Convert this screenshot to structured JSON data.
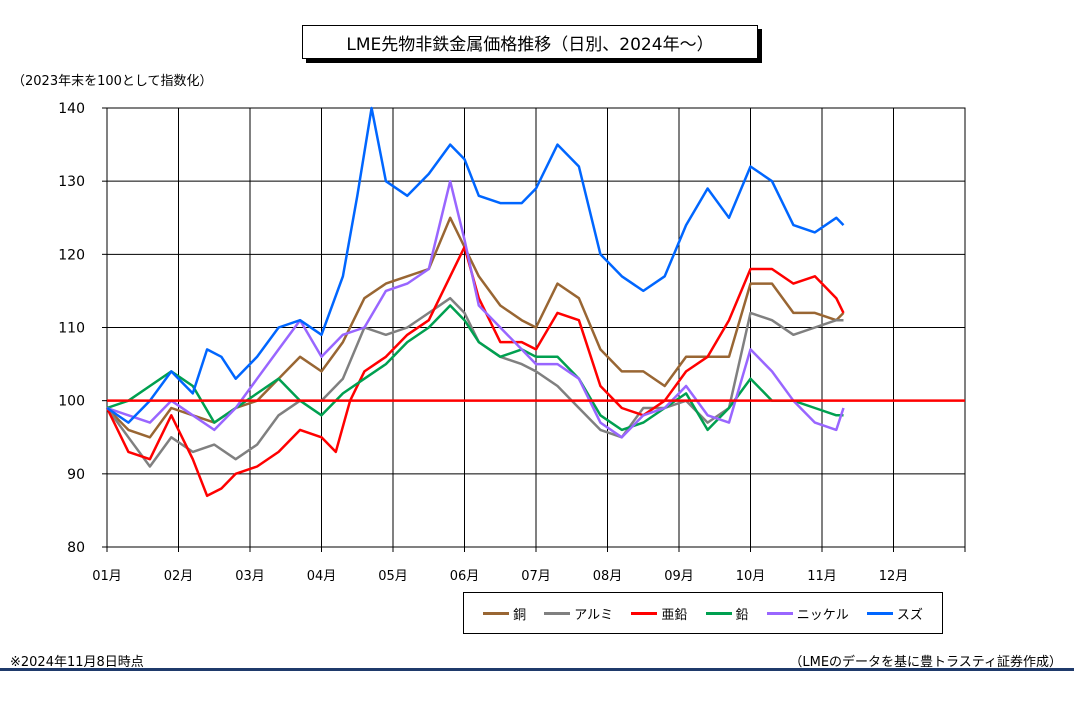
{
  "title": "LME先物非鉄金属価格推移（日別、2024年～）",
  "unit_label": "（2023年末を100として指数化）",
  "note": "※2024年11月8日時点",
  "source": "（LMEのデータを基に豊トラスティ証券作成）",
  "chart_data": {
    "type": "line",
    "ylim": [
      80,
      140
    ],
    "yticks": [
      80,
      90,
      100,
      110,
      120,
      130,
      140
    ],
    "xlim": [
      0,
      12
    ],
    "xticks": [
      "01月",
      "02月",
      "03月",
      "04月",
      "05月",
      "06月",
      "07月",
      "08月",
      "09月",
      "10月",
      "11月",
      "12月"
    ],
    "grid": true,
    "legend_position": "bottom-right",
    "reference_line": {
      "value": 100,
      "color": "#ff0000"
    },
    "series": [
      {
        "name": "銅",
        "color": "#996633",
        "points": [
          [
            0,
            99
          ],
          [
            0.3,
            96
          ],
          [
            0.6,
            95
          ],
          [
            0.9,
            99
          ],
          [
            1.2,
            98
          ],
          [
            1.5,
            97
          ],
          [
            1.8,
            99
          ],
          [
            2.1,
            100
          ],
          [
            2.4,
            103
          ],
          [
            2.7,
            106
          ],
          [
            3.0,
            104
          ],
          [
            3.3,
            108
          ],
          [
            3.6,
            114
          ],
          [
            3.9,
            116
          ],
          [
            4.2,
            117
          ],
          [
            4.5,
            118
          ],
          [
            4.8,
            125
          ],
          [
            5.0,
            121
          ],
          [
            5.2,
            117
          ],
          [
            5.5,
            113
          ],
          [
            5.8,
            111
          ],
          [
            6.0,
            110
          ],
          [
            6.3,
            116
          ],
          [
            6.6,
            114
          ],
          [
            6.9,
            107
          ],
          [
            7.2,
            104
          ],
          [
            7.5,
            104
          ],
          [
            7.8,
            102
          ],
          [
            8.1,
            106
          ],
          [
            8.4,
            106
          ],
          [
            8.7,
            106
          ],
          [
            9.0,
            116
          ],
          [
            9.3,
            116
          ],
          [
            9.6,
            112
          ],
          [
            9.9,
            112
          ],
          [
            10.2,
            111
          ],
          [
            10.3,
            112
          ]
        ]
      },
      {
        "name": "アルミ",
        "color": "#808080",
        "points": [
          [
            0,
            99
          ],
          [
            0.3,
            95
          ],
          [
            0.6,
            91
          ],
          [
            0.9,
            95
          ],
          [
            1.2,
            93
          ],
          [
            1.5,
            94
          ],
          [
            1.8,
            92
          ],
          [
            2.1,
            94
          ],
          [
            2.4,
            98
          ],
          [
            2.7,
            100
          ],
          [
            3.0,
            100
          ],
          [
            3.3,
            103
          ],
          [
            3.6,
            110
          ],
          [
            3.9,
            109
          ],
          [
            4.2,
            110
          ],
          [
            4.5,
            112
          ],
          [
            4.8,
            114
          ],
          [
            5.0,
            112
          ],
          [
            5.2,
            108
          ],
          [
            5.5,
            106
          ],
          [
            5.8,
            105
          ],
          [
            6.0,
            104
          ],
          [
            6.3,
            102
          ],
          [
            6.6,
            99
          ],
          [
            6.9,
            96
          ],
          [
            7.2,
            95
          ],
          [
            7.5,
            99
          ],
          [
            7.8,
            99
          ],
          [
            8.1,
            100
          ],
          [
            8.4,
            97
          ],
          [
            8.7,
            99
          ],
          [
            9.0,
            112
          ],
          [
            9.3,
            111
          ],
          [
            9.6,
            109
          ],
          [
            9.9,
            110
          ],
          [
            10.2,
            111
          ],
          [
            10.3,
            111
          ]
        ]
      },
      {
        "name": "亜鉛",
        "color": "#ff0000",
        "points": [
          [
            0,
            99
          ],
          [
            0.3,
            93
          ],
          [
            0.6,
            92
          ],
          [
            0.9,
            98
          ],
          [
            1.2,
            92
          ],
          [
            1.4,
            87
          ],
          [
            1.6,
            88
          ],
          [
            1.8,
            90
          ],
          [
            2.1,
            91
          ],
          [
            2.4,
            93
          ],
          [
            2.7,
            96
          ],
          [
            3.0,
            95
          ],
          [
            3.2,
            93
          ],
          [
            3.4,
            100
          ],
          [
            3.6,
            104
          ],
          [
            3.9,
            106
          ],
          [
            4.2,
            109
          ],
          [
            4.5,
            111
          ],
          [
            4.8,
            117
          ],
          [
            5.0,
            121
          ],
          [
            5.2,
            114
          ],
          [
            5.5,
            108
          ],
          [
            5.8,
            108
          ],
          [
            6.0,
            107
          ],
          [
            6.3,
            112
          ],
          [
            6.6,
            111
          ],
          [
            6.9,
            102
          ],
          [
            7.2,
            99
          ],
          [
            7.5,
            98
          ],
          [
            7.8,
            100
          ],
          [
            8.1,
            104
          ],
          [
            8.4,
            106
          ],
          [
            8.7,
            111
          ],
          [
            9.0,
            118
          ],
          [
            9.3,
            118
          ],
          [
            9.6,
            116
          ],
          [
            9.9,
            117
          ],
          [
            10.2,
            114
          ],
          [
            10.3,
            112
          ]
        ]
      },
      {
        "name": "鉛",
        "color": "#00a050",
        "points": [
          [
            0,
            99
          ],
          [
            0.3,
            100
          ],
          [
            0.6,
            102
          ],
          [
            0.9,
            104
          ],
          [
            1.2,
            102
          ],
          [
            1.5,
            97
          ],
          [
            1.8,
            99
          ],
          [
            2.1,
            101
          ],
          [
            2.4,
            103
          ],
          [
            2.7,
            100
          ],
          [
            3.0,
            98
          ],
          [
            3.3,
            101
          ],
          [
            3.6,
            103
          ],
          [
            3.9,
            105
          ],
          [
            4.2,
            108
          ],
          [
            4.5,
            110
          ],
          [
            4.8,
            113
          ],
          [
            5.0,
            111
          ],
          [
            5.2,
            108
          ],
          [
            5.5,
            106
          ],
          [
            5.8,
            107
          ],
          [
            6.0,
            106
          ],
          [
            6.3,
            106
          ],
          [
            6.6,
            103
          ],
          [
            6.9,
            98
          ],
          [
            7.2,
            96
          ],
          [
            7.5,
            97
          ],
          [
            7.8,
            99
          ],
          [
            8.1,
            101
          ],
          [
            8.4,
            96
          ],
          [
            8.7,
            99
          ],
          [
            9.0,
            103
          ],
          [
            9.3,
            100
          ],
          [
            9.6,
            100
          ],
          [
            9.9,
            99
          ],
          [
            10.2,
            98
          ],
          [
            10.3,
            98
          ]
        ]
      },
      {
        "name": "ニッケル",
        "color": "#9966ff",
        "points": [
          [
            0,
            99
          ],
          [
            0.3,
            98
          ],
          [
            0.6,
            97
          ],
          [
            0.9,
            100
          ],
          [
            1.2,
            98
          ],
          [
            1.5,
            96
          ],
          [
            1.8,
            99
          ],
          [
            2.1,
            103
          ],
          [
            2.4,
            107
          ],
          [
            2.7,
            111
          ],
          [
            3.0,
            106
          ],
          [
            3.3,
            109
          ],
          [
            3.6,
            110
          ],
          [
            3.9,
            115
          ],
          [
            4.2,
            116
          ],
          [
            4.5,
            118
          ],
          [
            4.8,
            130
          ],
          [
            5.0,
            122
          ],
          [
            5.2,
            113
          ],
          [
            5.5,
            110
          ],
          [
            5.8,
            107
          ],
          [
            6.0,
            105
          ],
          [
            6.3,
            105
          ],
          [
            6.6,
            103
          ],
          [
            6.9,
            97
          ],
          [
            7.2,
            95
          ],
          [
            7.5,
            98
          ],
          [
            7.8,
            99
          ],
          [
            8.1,
            102
          ],
          [
            8.4,
            98
          ],
          [
            8.7,
            97
          ],
          [
            9.0,
            107
          ],
          [
            9.3,
            104
          ],
          [
            9.6,
            100
          ],
          [
            9.9,
            97
          ],
          [
            10.2,
            96
          ],
          [
            10.3,
            99
          ]
        ]
      },
      {
        "name": "スズ",
        "color": "#0066ff",
        "points": [
          [
            0,
            99
          ],
          [
            0.3,
            97
          ],
          [
            0.6,
            100
          ],
          [
            0.9,
            104
          ],
          [
            1.2,
            101
          ],
          [
            1.4,
            107
          ],
          [
            1.6,
            106
          ],
          [
            1.8,
            103
          ],
          [
            2.1,
            106
          ],
          [
            2.4,
            110
          ],
          [
            2.7,
            111
          ],
          [
            3.0,
            109
          ],
          [
            3.3,
            117
          ],
          [
            3.5,
            128
          ],
          [
            3.7,
            140
          ],
          [
            3.9,
            130
          ],
          [
            4.2,
            128
          ],
          [
            4.5,
            131
          ],
          [
            4.8,
            135
          ],
          [
            5.0,
            133
          ],
          [
            5.2,
            128
          ],
          [
            5.5,
            127
          ],
          [
            5.8,
            127
          ],
          [
            6.0,
            129
          ],
          [
            6.3,
            135
          ],
          [
            6.6,
            132
          ],
          [
            6.9,
            120
          ],
          [
            7.2,
            117
          ],
          [
            7.5,
            115
          ],
          [
            7.8,
            117
          ],
          [
            8.1,
            124
          ],
          [
            8.4,
            129
          ],
          [
            8.7,
            125
          ],
          [
            9.0,
            132
          ],
          [
            9.3,
            130
          ],
          [
            9.6,
            124
          ],
          [
            9.9,
            123
          ],
          [
            10.2,
            125
          ],
          [
            10.3,
            124
          ]
        ]
      }
    ]
  }
}
